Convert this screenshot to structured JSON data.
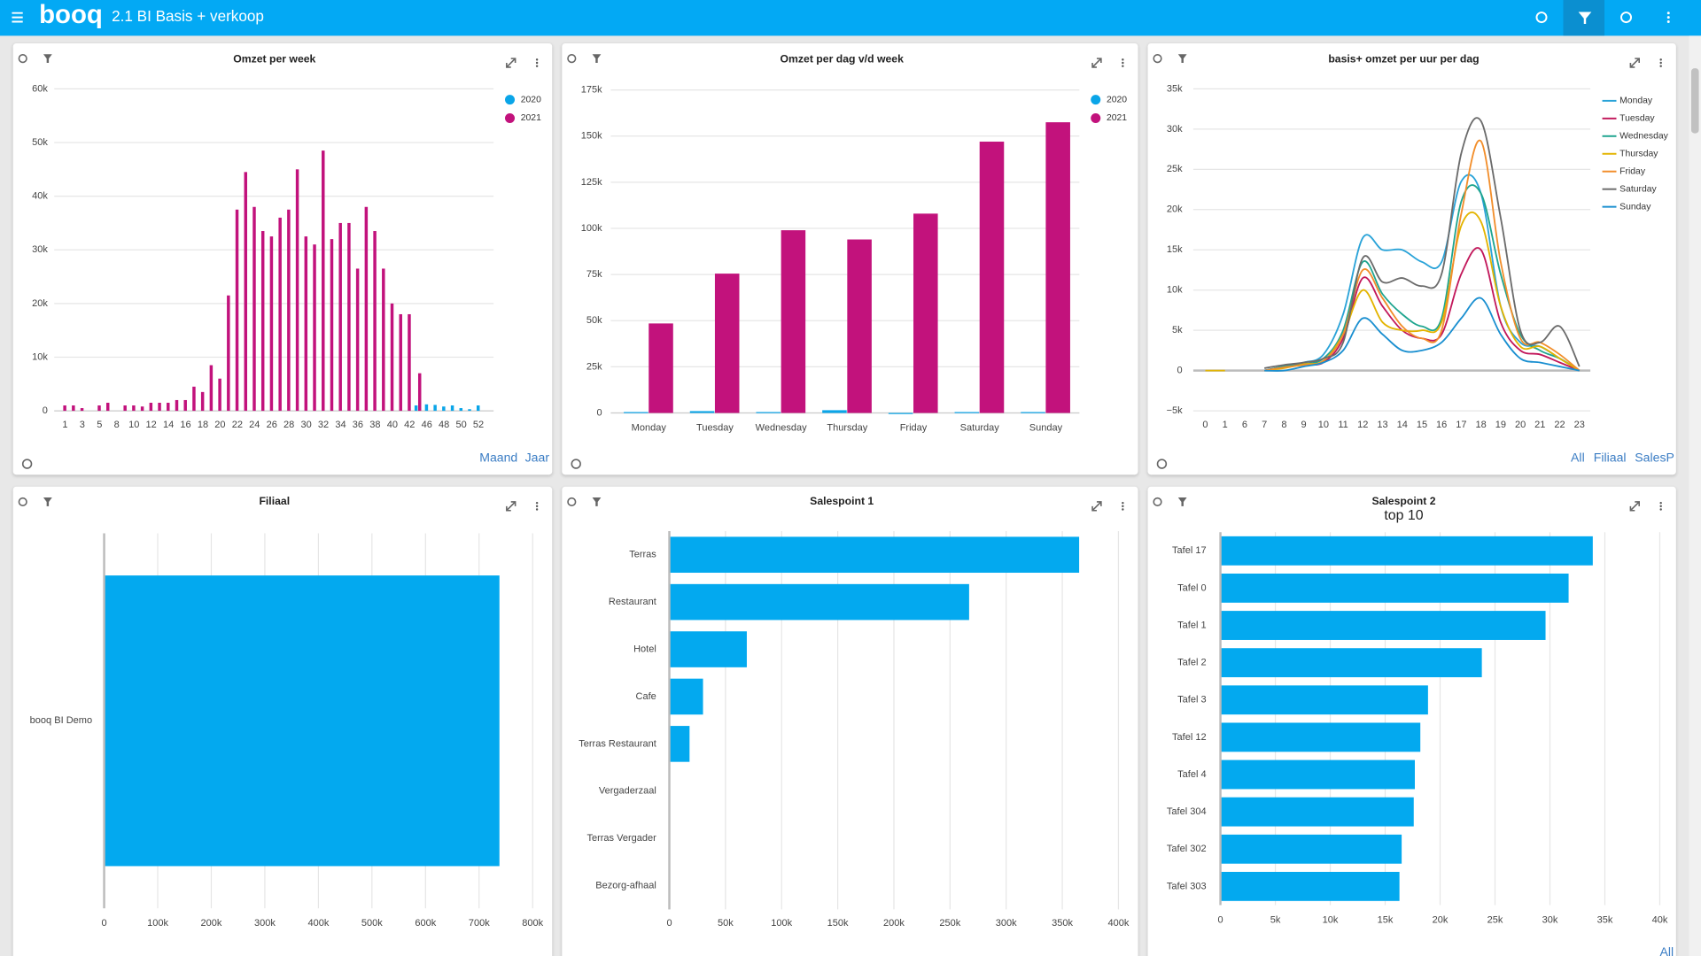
{
  "header": {
    "logo": "booq",
    "title": "2.1 BI Basis + verkoop"
  },
  "chart_data": [
    {
      "type": "bar",
      "title": "Omzet per week",
      "categories": [
        "1",
        null,
        "3",
        null,
        "5",
        null,
        "8",
        null,
        "10",
        null,
        "12",
        null,
        "14",
        null,
        "16",
        null,
        "18",
        null,
        "20",
        null,
        "22",
        null,
        "24",
        null,
        "26",
        null,
        "28",
        null,
        "30",
        null,
        "32",
        null,
        "34",
        null,
        "36",
        null,
        "38",
        null,
        "40",
        null,
        "42",
        null,
        "46",
        null,
        "48",
        null,
        "50",
        null,
        "52"
      ],
      "series": [
        {
          "name": "2020",
          "color": "#0aa5e8",
          "values": [
            null,
            null,
            null,
            null,
            null,
            null,
            null,
            null,
            null,
            null,
            null,
            null,
            null,
            null,
            null,
            null,
            null,
            null,
            null,
            null,
            null,
            null,
            null,
            null,
            null,
            null,
            null,
            null,
            null,
            null,
            null,
            null,
            null,
            null,
            null,
            null,
            null,
            null,
            null,
            null,
            null,
            1000,
            1200,
            1100,
            800,
            1000,
            500,
            300,
            1000
          ]
        },
        {
          "name": "2021",
          "color": "#c2127c",
          "values": [
            1000,
            1000,
            500,
            null,
            1000,
            1500,
            null,
            1000,
            1000,
            800,
            1500,
            1500,
            1500,
            2000,
            2000,
            4500,
            3500,
            8500,
            6000,
            21500,
            37500,
            44500,
            38000,
            33500,
            32500,
            36000,
            37500,
            45000,
            32500,
            31000,
            48500,
            32000,
            35000,
            35000,
            26500,
            38000,
            33500,
            26500,
            20000,
            18000,
            18000,
            7000,
            null,
            null,
            null,
            null,
            null,
            null,
            null
          ]
        }
      ],
      "ylim": [
        0,
        60000
      ],
      "yticks": [
        0,
        {
          "value": 10000,
          "label": "10k"
        },
        {
          "value": 20000,
          "label": "20k"
        },
        {
          "value": 30000,
          "label": "30k"
        },
        {
          "value": 40000,
          "label": "40k"
        },
        {
          "value": 50000,
          "label": "50k"
        },
        {
          "value": 60000,
          "label": "60k"
        }
      ],
      "grid": true,
      "legend": "top-right",
      "buttons": [
        "Maand",
        "Jaar"
      ]
    },
    {
      "type": "bar",
      "title": "Omzet per dag v/d week",
      "categories": [
        "Monday",
        "Tuesday",
        "Wednesday",
        "Thursday",
        "Friday",
        "Saturday",
        "Sunday"
      ],
      "series": [
        {
          "name": "2020",
          "color": "#0aa5e8",
          "values": [
            500,
            1000,
            500,
            1500,
            0,
            500,
            500
          ]
        },
        {
          "name": "2021",
          "color": "#c2127c",
          "values": [
            48500,
            75500,
            99000,
            94000,
            108000,
            147000,
            157500
          ]
        }
      ],
      "ylim": [
        0,
        175000
      ],
      "yticks": [
        0,
        {
          "value": 25000,
          "label": "25k"
        },
        {
          "value": 50000,
          "label": "50k"
        },
        {
          "value": 75000,
          "label": "75k"
        },
        {
          "value": 100000,
          "label": "100k"
        },
        {
          "value": 125000,
          "label": "125k"
        },
        {
          "value": 150000,
          "label": "150k"
        },
        {
          "value": 175000,
          "label": "175k"
        }
      ],
      "grid": true,
      "legend": "top-right"
    },
    {
      "type": "line",
      "title": "basis+ omzet per uur per dag",
      "categories": [
        "0",
        "1",
        "6",
        "7",
        "8",
        "9",
        "10",
        "11",
        "12",
        "13",
        "14",
        "15",
        "16",
        "17",
        "18",
        "19",
        "20",
        "21",
        "22",
        "23"
      ],
      "series": [
        {
          "name": "Monday",
          "color": "#2aa3d8",
          "values": [
            null,
            null,
            null,
            0,
            500,
            1000,
            2000,
            7000,
            16500,
            15000,
            15000,
            13500,
            13500,
            23500,
            22000,
            8000,
            3500,
            3000,
            1500,
            0
          ]
        },
        {
          "name": "Tuesday",
          "color": "#c2185b",
          "values": [
            null,
            null,
            null,
            0,
            500,
            800,
            1000,
            4000,
            11500,
            8000,
            5000,
            4000,
            4500,
            12000,
            15000,
            6000,
            2500,
            2000,
            1000,
            0
          ]
        },
        {
          "name": "Wednesday",
          "color": "#1fa58f",
          "values": [
            null,
            null,
            null,
            0,
            500,
            800,
            1500,
            5000,
            13500,
            9500,
            7000,
            5500,
            6500,
            21000,
            22000,
            12000,
            4500,
            2500,
            1500,
            0
          ]
        },
        {
          "name": "Thursday",
          "color": "#e3b400",
          "values": [
            0,
            0,
            null,
            0,
            300,
            800,
            1200,
            4500,
            10000,
            6000,
            5000,
            5000,
            6000,
            18000,
            18500,
            8000,
            3000,
            3000,
            1500,
            0
          ]
        },
        {
          "name": "Friday",
          "color": "#f28e2b",
          "values": [
            null,
            null,
            null,
            0,
            400,
            700,
            1200,
            4500,
            12500,
            9000,
            5500,
            4000,
            5000,
            19500,
            28500,
            13500,
            4000,
            3500,
            2000,
            0
          ]
        },
        {
          "name": "Saturday",
          "color": "#6b6b6b",
          "values": [
            null,
            null,
            null,
            300,
            700,
            1000,
            1500,
            3500,
            14000,
            11000,
            11500,
            10500,
            12000,
            27000,
            31000,
            19000,
            5000,
            3500,
            5500,
            500
          ]
        },
        {
          "name": "Sunday",
          "color": "#1a8fd0",
          "values": [
            null,
            null,
            null,
            0,
            0,
            500,
            1000,
            2500,
            6500,
            4500,
            2500,
            2500,
            3500,
            6500,
            9000,
            4500,
            1500,
            1000,
            500,
            0
          ]
        }
      ],
      "ylim": [
        -5000,
        35000
      ],
      "yticks": [
        {
          "value": -5000,
          "label": "−5k"
        },
        0,
        {
          "value": 5000,
          "label": "5k"
        },
        {
          "value": 10000,
          "label": "10k"
        },
        {
          "value": 15000,
          "label": "15k"
        },
        {
          "value": 20000,
          "label": "20k"
        },
        {
          "value": 25000,
          "label": "25k"
        },
        {
          "value": 30000,
          "label": "30k"
        },
        {
          "value": 35000,
          "label": "35k"
        }
      ],
      "grid": true,
      "legend": "top-right",
      "buttons": [
        "All",
        "Filiaal",
        "SalesP"
      ]
    },
    {
      "type": "barh",
      "title": "Filiaal",
      "categories": [
        "booq BI Demo"
      ],
      "values": [
        738000
      ],
      "color": "#03a9ef",
      "xlim": [
        0,
        800000
      ],
      "xticks": [
        0,
        {
          "value": 100000,
          "label": "100k"
        },
        {
          "value": 200000,
          "label": "200k"
        },
        {
          "value": 300000,
          "label": "300k"
        },
        {
          "value": 400000,
          "label": "400k"
        },
        {
          "value": 500000,
          "label": "500k"
        },
        {
          "value": 600000,
          "label": "600k"
        },
        {
          "value": 700000,
          "label": "700k"
        },
        {
          "value": 800000,
          "label": "800k"
        }
      ],
      "grid": true
    },
    {
      "type": "barh",
      "title": "Salespoint 1",
      "categories": [
        "Terras",
        "Restaurant",
        "Hotel",
        "Cafe",
        "Terras Restaurant",
        "Vergaderzaal",
        "Terras Vergader",
        "Bezorg-afhaal"
      ],
      "values": [
        365000,
        267000,
        69000,
        30000,
        18000,
        500,
        300,
        200
      ],
      "color": "#03a9ef",
      "xlim": [
        0,
        400000
      ],
      "xticks": [
        0,
        {
          "value": 50000,
          "label": "50k"
        },
        {
          "value": 100000,
          "label": "100k"
        },
        {
          "value": 150000,
          "label": "150k"
        },
        {
          "value": 200000,
          "label": "200k"
        },
        {
          "value": 250000,
          "label": "250k"
        },
        {
          "value": 300000,
          "label": "300k"
        },
        {
          "value": 350000,
          "label": "350k"
        },
        {
          "value": 400000,
          "label": "400k"
        }
      ],
      "grid": true
    },
    {
      "type": "barh",
      "title": "Salespoint 2",
      "subtitle": "top 10",
      "categories": [
        "Tafel 17",
        "Tafel 0",
        "Tafel 1",
        "Tafel 2",
        "Tafel 3",
        "Tafel 12",
        "Tafel 4",
        "Tafel 304",
        "Tafel 302",
        "Tafel 303"
      ],
      "values": [
        33900,
        31700,
        29600,
        23800,
        18900,
        18200,
        17700,
        17600,
        16500,
        16300
      ],
      "color": "#03a9ef",
      "xlim": [
        0,
        40000
      ],
      "xticks": [
        0,
        {
          "value": 5000,
          "label": "5k"
        },
        {
          "value": 10000,
          "label": "10k"
        },
        {
          "value": 15000,
          "label": "15k"
        },
        {
          "value": 20000,
          "label": "20k"
        },
        {
          "value": 25000,
          "label": "25k"
        },
        {
          "value": 30000,
          "label": "30k"
        },
        {
          "value": 35000,
          "label": "35k"
        },
        {
          "value": 40000,
          "label": "40k"
        }
      ],
      "grid": true,
      "buttons": [
        "All"
      ]
    }
  ]
}
